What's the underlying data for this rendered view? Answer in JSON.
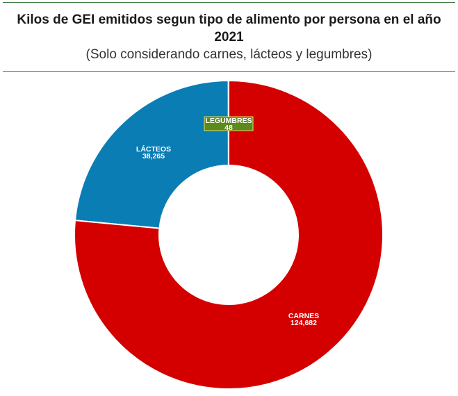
{
  "title": "Kilos de GEI emitidos segun tipo de alimento por persona en el año 2021",
  "subtitle": "(Solo considerando carnes, lácteos y legumbres)",
  "colors": {
    "carnes": "#d40000",
    "lacteos": "#0a7db5",
    "legumbres": "#5d8a1c",
    "rule": "#3f7a3f"
  },
  "chart_data": {
    "type": "pie",
    "variant": "donut",
    "categories": [
      "LEGUMBRES",
      "LÁCTEOS",
      "CARNES"
    ],
    "values": [
      48,
      38265,
      124682
    ],
    "value_labels": [
      "48",
      "38,265",
      "124,682"
    ],
    "title": "Kilos de GEI emitidos segun tipo de alimento por persona en el año 2021",
    "subtitle": "(Solo considerando carnes, lácteos y legumbres)",
    "direction": "counterclockwise from top"
  }
}
